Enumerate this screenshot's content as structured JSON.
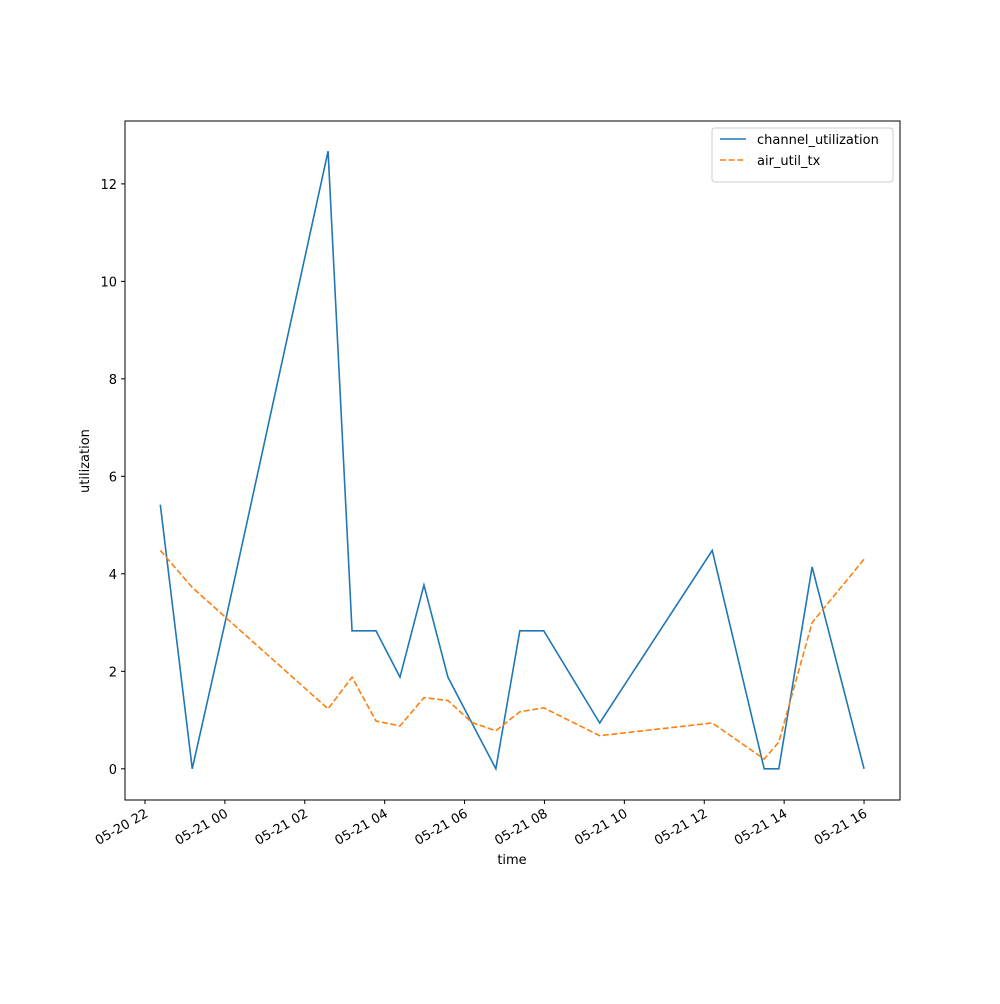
{
  "chart_data": {
    "type": "line",
    "x": [
      "05-20 22:23",
      "05-20 23:11",
      "05-21 00:00",
      "05-21 02:35",
      "05-21 03:11",
      "05-21 03:47",
      "05-21 04:23",
      "05-21 04:59",
      "05-21 05:35",
      "05-21 06:11",
      "05-21 06:47",
      "05-21 07:23",
      "05-21 07:59",
      "05-21 09:23",
      "05-21 12:12",
      "05-21 13:30",
      "05-21 13:52",
      "05-21 14:42",
      "05-21 16:00"
    ],
    "series": [
      {
        "name": "channel_utilization",
        "color": "#1f77b4",
        "dash": "solid",
        "values": [
          5.42,
          0,
          2.98,
          12.67,
          2.83,
          2.83,
          1.88,
          3.77,
          1.88,
          0.94,
          0,
          2.83,
          2.83,
          0.94,
          4.48,
          0,
          0,
          4.14,
          0
        ]
      },
      {
        "name": "air_util_tx",
        "color": "#ff7f0e",
        "dash": "dashed",
        "values": [
          4.48,
          3.72,
          3.12,
          1.23,
          1.88,
          0.98,
          0.88,
          1.46,
          1.4,
          0.95,
          0.78,
          1.17,
          1.25,
          0.68,
          0.94,
          0.2,
          0.55,
          3.0,
          4.3
        ]
      }
    ],
    "xlabel": "time",
    "ylabel": "utilization",
    "xlim": [
      "05-20 21:30",
      "05-21 16:54"
    ],
    "xticks": [
      {
        "value": "05-20 22:00",
        "label": "05-20 22"
      },
      {
        "value": "05-21 00:00",
        "label": "05-21 00"
      },
      {
        "value": "05-21 02:00",
        "label": "05-21 02"
      },
      {
        "value": "05-21 04:00",
        "label": "05-21 04"
      },
      {
        "value": "05-21 06:00",
        "label": "05-21 06"
      },
      {
        "value": "05-21 08:00",
        "label": "05-21 08"
      },
      {
        "value": "05-21 10:00",
        "label": "05-21 10"
      },
      {
        "value": "05-21 12:00",
        "label": "05-21 12"
      },
      {
        "value": "05-21 14:00",
        "label": "05-21 14"
      },
      {
        "value": "05-21 16:00",
        "label": "05-21 16"
      }
    ],
    "ylim": [
      -0.64,
      13.29
    ],
    "yticks": [
      0,
      2,
      4,
      6,
      8,
      10,
      12
    ],
    "legend": "upper right"
  }
}
